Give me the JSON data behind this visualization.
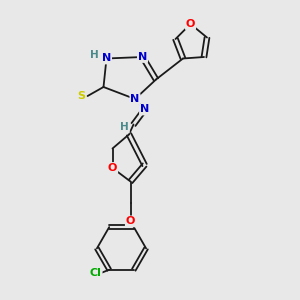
{
  "bg_color": "#e8e8e8",
  "bond_color": "#1a1a1a",
  "atom_colors": {
    "N": "#0000cc",
    "O": "#ff0000",
    "S": "#cccc00",
    "Cl": "#00aa00",
    "H": "#4a8a8a",
    "C": "#1a1a1a"
  },
  "lw": 1.3,
  "fs": 8.0
}
